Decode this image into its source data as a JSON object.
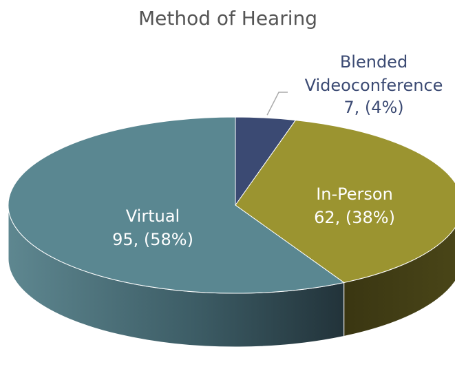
{
  "chart_data": {
    "type": "pie3d",
    "title": "Method of Hearing",
    "categories": [
      "Blended Videoconference",
      "In-Person",
      "Virtual"
    ],
    "values": [
      7,
      62,
      95
    ],
    "value_labels": [
      "7, (4%)",
      "62, (38%)",
      "95, (58%)"
    ],
    "colors": [
      "#3b4a73",
      "#9b9430",
      "#5a8791"
    ]
  }
}
